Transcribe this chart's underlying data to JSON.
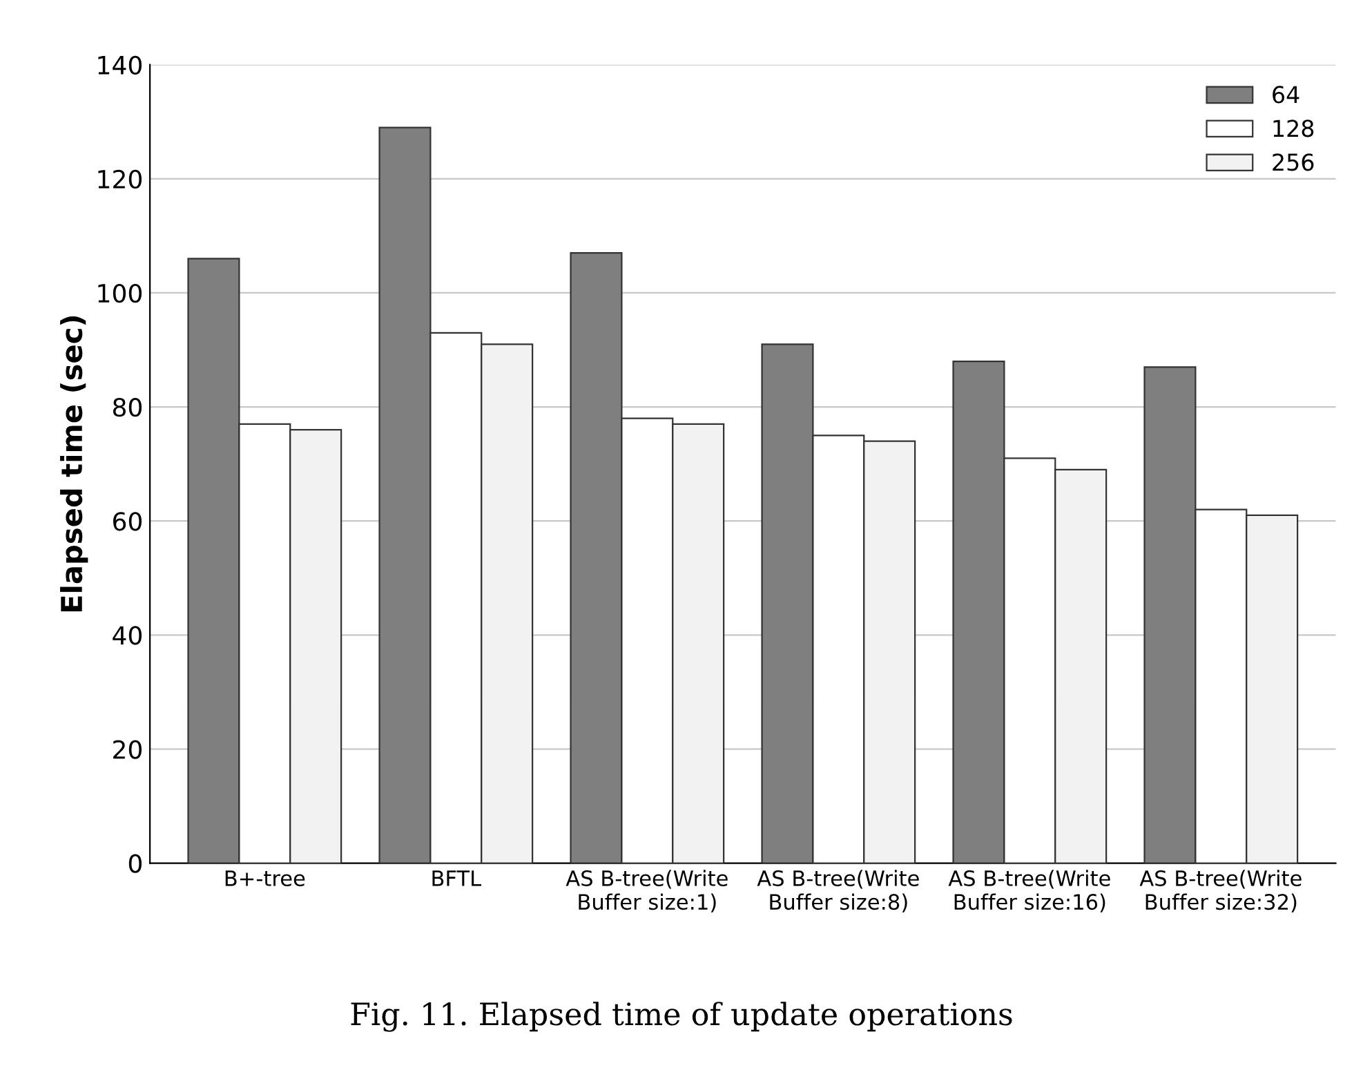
{
  "chart_data": {
    "type": "bar",
    "ylabel": "Elapsed time (sec)",
    "categories": [
      "B+-tree",
      "BFTL",
      "AS B-tree(Write\nBuffer size:1)",
      "AS B-tree(Write\nBuffer size:8)",
      "AS B-tree(Write\nBuffer size:16)",
      "AS B-tree(Write\nBuffer size:32)"
    ],
    "series": [
      {
        "name": "64",
        "color": "#7f7f7f",
        "values": [
          106,
          129,
          107,
          91,
          88,
          87
        ]
      },
      {
        "name": "128",
        "color": "#ffffff",
        "values": [
          77,
          93,
          78,
          75,
          71,
          62
        ]
      },
      {
        "name": "256",
        "color": "#f2f2f2",
        "values": [
          76,
          91,
          77,
          74,
          69,
          61
        ]
      }
    ],
    "ylim": [
      0,
      140
    ],
    "yticks": [
      0,
      20,
      40,
      60,
      80,
      100,
      120,
      140
    ],
    "grid": "y",
    "legend": "top right",
    "annotations": [
      "Fig. 11. Elapsed time of update operations"
    ]
  }
}
